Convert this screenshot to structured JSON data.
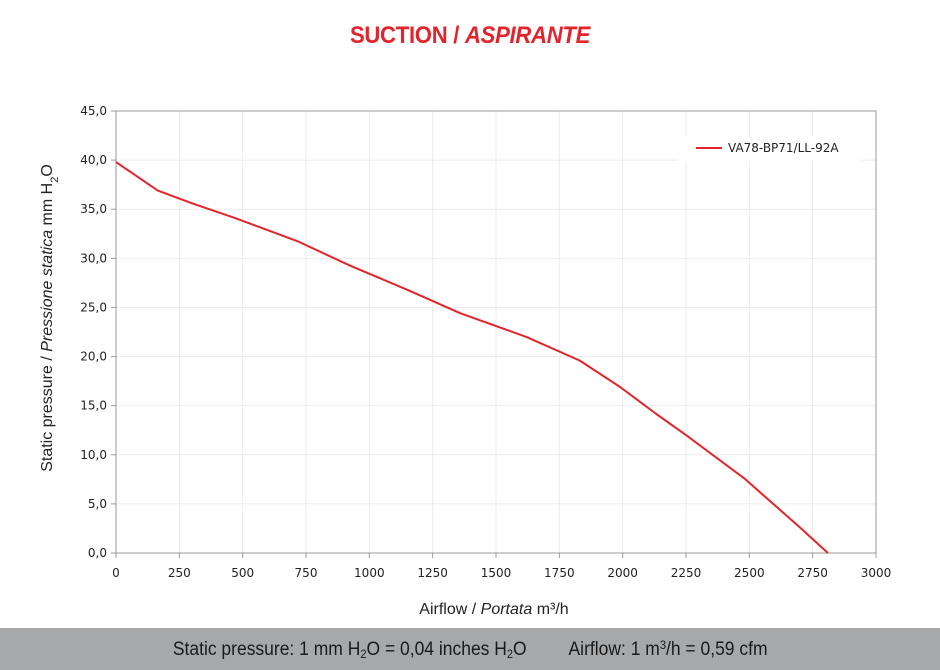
{
  "title": {
    "main": "SUCTION",
    "separator": " / ",
    "italic": "ASPIRANTE"
  },
  "footer": {
    "pressure": {
      "a": "Static pressure: 1 mm H",
      "sub1": "2",
      "b": "O = 0,04 inches H",
      "sub2": "2",
      "c": "O"
    },
    "airflow": {
      "a": "Airflow: 1 m",
      "sup": "3",
      "b": "/h = 0,59 cfm"
    }
  },
  "chart_data": {
    "type": "line",
    "x_axis": {
      "label": "Airflow",
      "label_sep": " / ",
      "label_italic": "Portata",
      "unit": " m³/h",
      "range": [
        0,
        3000
      ],
      "ticks": [
        "0",
        "250",
        "500",
        "750",
        "1000",
        "1250",
        "1500",
        "1750",
        "2000",
        "2250",
        "2500",
        "2750",
        "3000"
      ]
    },
    "y_axis": {
      "label": "Static pressure",
      "label_sep": " / ",
      "label_italic": "Pressione statica",
      "unit_main": " mm H",
      "unit_sub": "2",
      "unit_end": "O",
      "range": [
        0,
        45
      ],
      "ticks": [
        "0,0",
        "5,0",
        "10,0",
        "15,0",
        "20,0",
        "25,0",
        "30,0",
        "35,0",
        "40,0",
        "45,0"
      ]
    },
    "grid": true,
    "legend_position": "top-right",
    "series": [
      {
        "name": "VA78-BP71/LL-92A",
        "color": "#e3242b",
        "points": [
          [
            0,
            39.8
          ],
          [
            165,
            36.9
          ],
          [
            300,
            35.6
          ],
          [
            470,
            34.1
          ],
          [
            720,
            31.7
          ],
          [
            920,
            29.3
          ],
          [
            1150,
            26.8
          ],
          [
            1360,
            24.4
          ],
          [
            1620,
            22.0
          ],
          [
            1830,
            19.6
          ],
          [
            1990,
            16.9
          ],
          [
            2130,
            14.2
          ],
          [
            2250,
            12.0
          ],
          [
            2480,
            7.6
          ],
          [
            2700,
            2.6
          ],
          [
            2810,
            0.0
          ]
        ]
      }
    ]
  }
}
